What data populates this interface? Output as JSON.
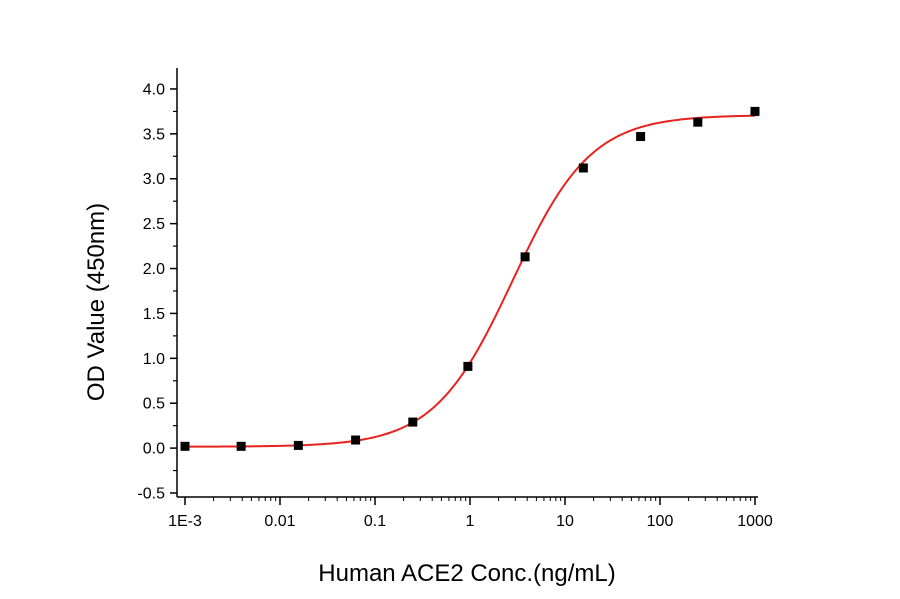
{
  "chart_data": {
    "type": "scatter",
    "title": "",
    "xlabel": "Human ACE2 Conc.(ng/mL)",
    "ylabel": "OD Value (450nm)",
    "x_scale": "log",
    "xlim": [
      0.001,
      1000
    ],
    "ylim": [
      -0.5,
      4.2
    ],
    "x_ticks": [
      0.001,
      0.01,
      0.1,
      1,
      10,
      100,
      1000
    ],
    "x_tick_labels": [
      "1E-3",
      "0.01",
      "0.1",
      "1",
      "10",
      "100",
      "1000"
    ],
    "y_ticks": [
      -0.5,
      0,
      0.5,
      1,
      1.5,
      2,
      2.5,
      3,
      3.5,
      4
    ],
    "y_tick_labels": [
      "-0.5",
      "0.0",
      "0.5",
      "1.0",
      "1.5",
      "2.0",
      "2.5",
      "3.0",
      "3.5",
      "4.0"
    ],
    "grid": false,
    "legend": "none",
    "series": [
      {
        "type": "scatter",
        "color": "#000000",
        "marker": "square",
        "x": [
          0.001,
          0.0039,
          0.0156,
          0.0625,
          0.25,
          0.95,
          3.8,
          15.6,
          62.5,
          250,
          1000
        ],
        "y": [
          0.02,
          0.02,
          0.03,
          0.09,
          0.29,
          0.91,
          2.13,
          3.12,
          3.47,
          3.63,
          3.75
        ]
      },
      {
        "type": "line",
        "color": "#e8231f",
        "fit": "four-parameter logistic",
        "bottom": 0.015,
        "top": 3.71,
        "ec50": 2.8,
        "hill": 1.05,
        "x_range": [
          0.001,
          1000
        ]
      }
    ]
  }
}
